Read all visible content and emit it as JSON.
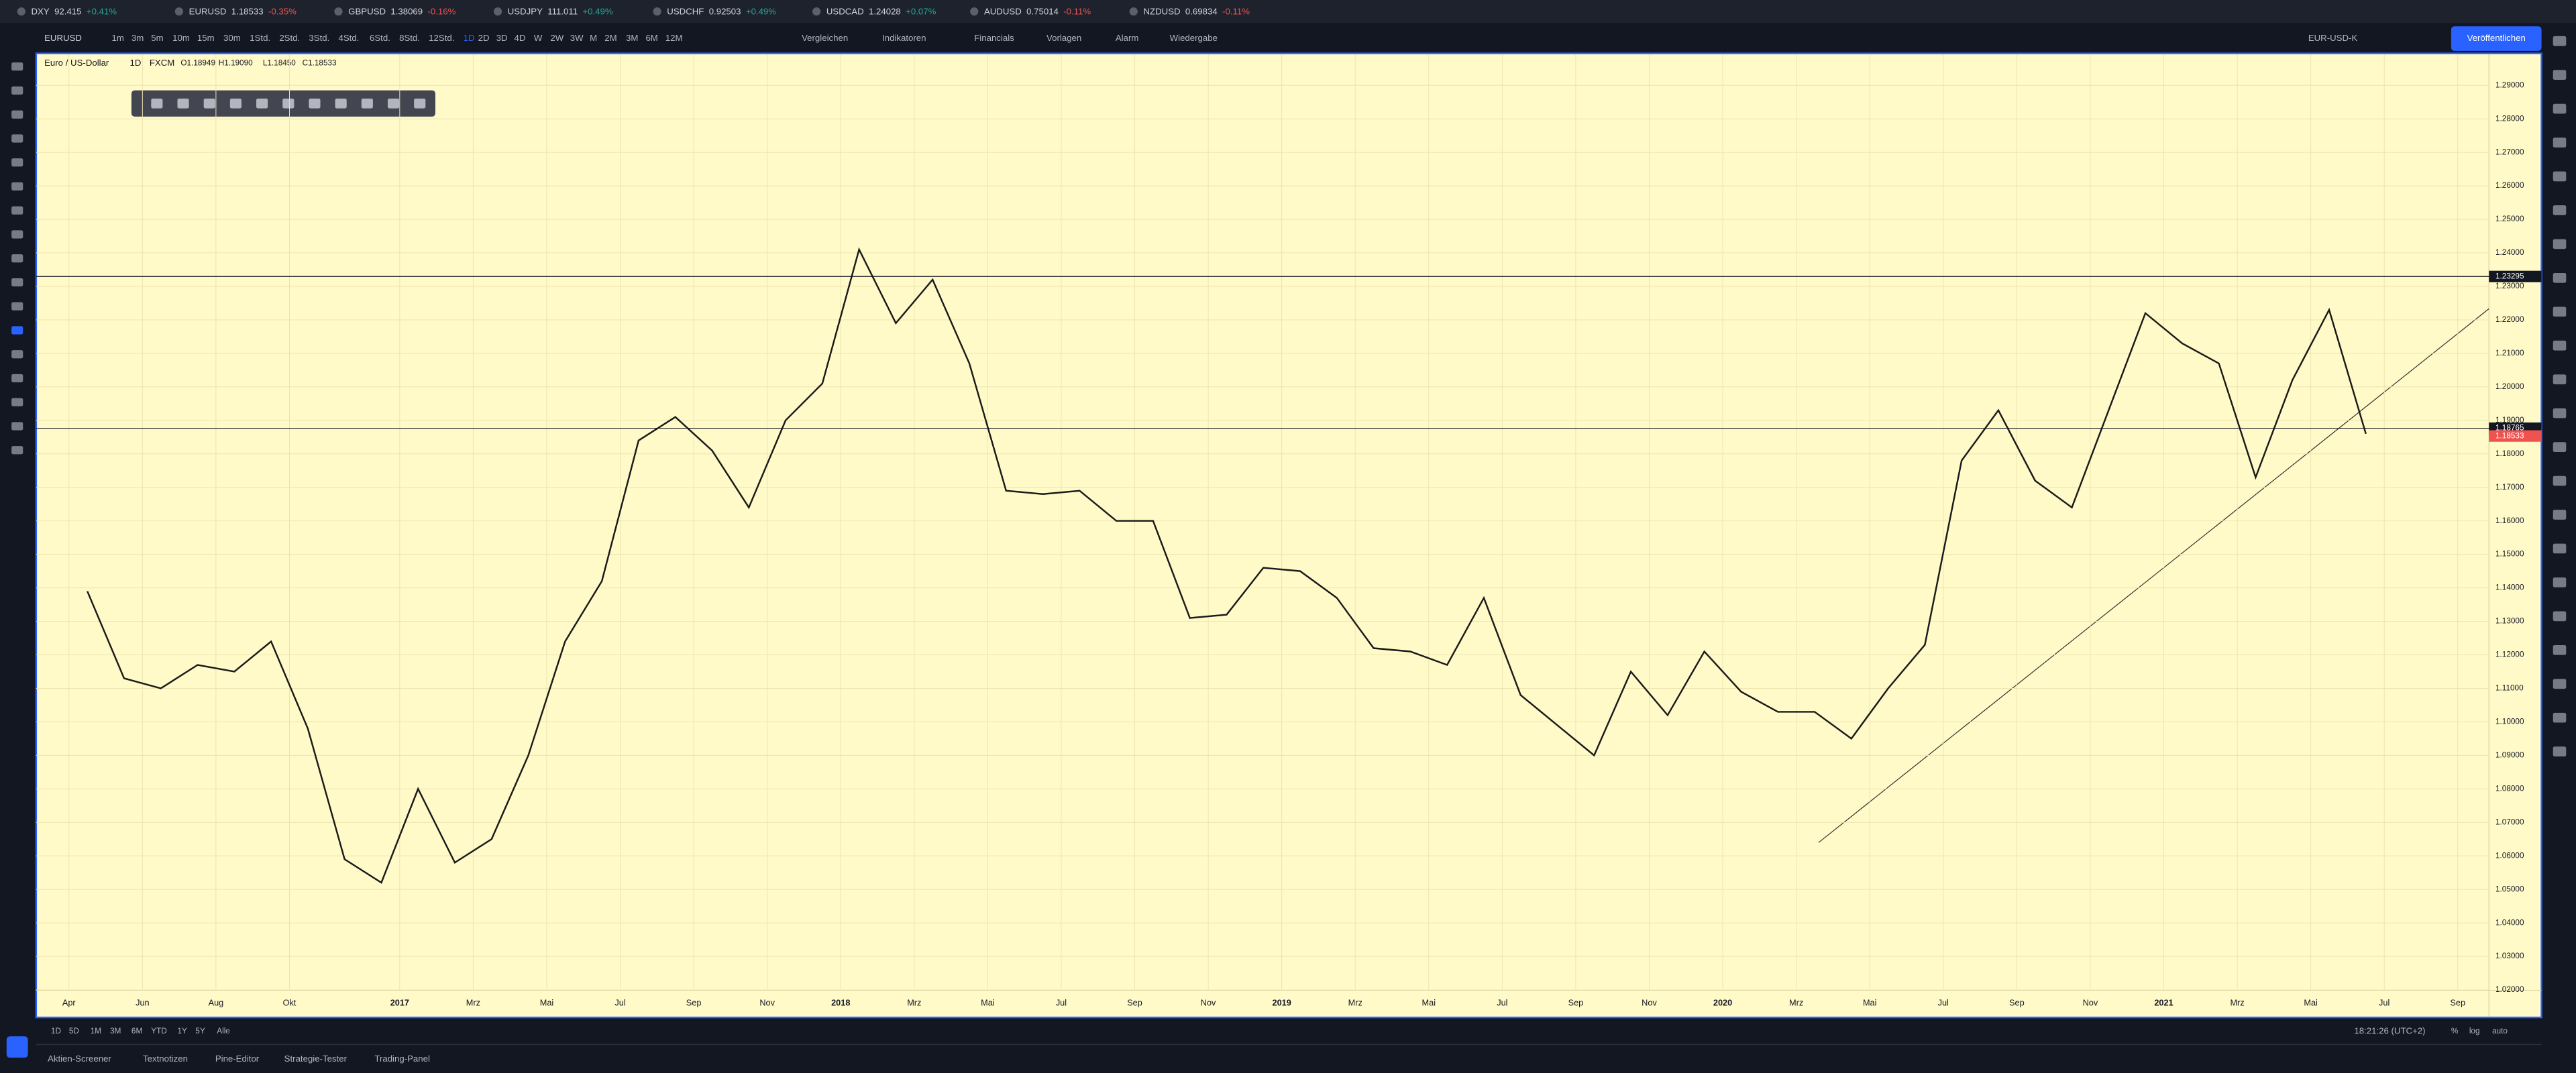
{
  "ticker_tabs": [
    {
      "symbol": "DXY",
      "price": "92.415",
      "change": "+0.41%"
    },
    {
      "symbol": "EURUSD",
      "price": "1.18533",
      "change": "-0.35%"
    },
    {
      "symbol": "GBPUSD",
      "price": "1.38069",
      "change": "-0.16%"
    },
    {
      "symbol": "USDJPY",
      "price": "111.011",
      "change": "+0.49%"
    },
    {
      "symbol": "USDCHF",
      "price": "0.92503",
      "change": "+0.49%"
    },
    {
      "symbol": "USDCAD",
      "price": "1.24028",
      "change": "+0.07%"
    },
    {
      "symbol": "AUDUSD",
      "price": "0.75014",
      "change": "-0.11%"
    },
    {
      "symbol": "NZDUSD",
      "price": "0.69834",
      "change": "-0.11%"
    }
  ],
  "toolbar": {
    "symbol": "EURUSD",
    "intervals": [
      "1m",
      "3m",
      "5m",
      "10m",
      "15m",
      "30m",
      "1Std.",
      "2Std.",
      "3Std.",
      "4Std.",
      "6Std.",
      "8Std.",
      "12Std.",
      "1D",
      "2D",
      "3D",
      "4D",
      "W",
      "2W",
      "3W",
      "M",
      "2M",
      "3M",
      "6M",
      "12M"
    ],
    "buttons": [
      "Vergleichen",
      "Indikatoren",
      "Financials",
      "Vorlagen",
      "Alarm",
      "Wiedergabe"
    ],
    "layout_name": "EUR-USD-K",
    "publish": "Veröffentlichen"
  },
  "legend": {
    "name": "Euro / US-Dollar",
    "interval": "1D",
    "source": "FXCM",
    "ohlc": [
      "O1.18949",
      "H1.19090",
      "L1.18450",
      "C1.18533"
    ]
  },
  "chart_data": {
    "type": "line",
    "color": "#1a1a1a",
    "x": [
      "2016-04",
      "2016-05",
      "2016-06",
      "2016-07",
      "2016-08",
      "2016-09",
      "2016-10",
      "2016-11",
      "2016-12",
      "2017-01",
      "2017-02",
      "2017-03",
      "2017-04",
      "2017-05",
      "2017-06",
      "2017-07",
      "2017-08",
      "2017-09",
      "2017-10",
      "2017-11",
      "2017-12",
      "2018-01",
      "2018-02",
      "2018-03",
      "2018-04",
      "2018-05",
      "2018-06",
      "2018-07",
      "2018-08",
      "2018-09",
      "2018-10",
      "2018-11",
      "2018-12",
      "2019-01",
      "2019-02",
      "2019-03",
      "2019-04",
      "2019-05",
      "2019-06",
      "2019-07",
      "2019-08",
      "2019-09",
      "2019-10",
      "2019-11",
      "2019-12",
      "2020-01",
      "2020-02",
      "2020-03",
      "2020-04",
      "2020-05",
      "2020-06",
      "2020-07",
      "2020-08",
      "2020-09",
      "2020-10",
      "2020-11",
      "2020-12",
      "2021-01",
      "2021-02",
      "2021-03",
      "2021-04",
      "2021-05",
      "2021-06"
    ],
    "values": [
      1.139,
      1.113,
      1.11,
      1.117,
      1.115,
      1.124,
      1.098,
      1.059,
      1.052,
      1.08,
      1.058,
      1.065,
      1.09,
      1.124,
      1.142,
      1.184,
      1.191,
      1.181,
      1.164,
      1.19,
      1.201,
      1.241,
      1.219,
      1.232,
      1.207,
      1.169,
      1.168,
      1.169,
      1.16,
      1.16,
      1.131,
      1.132,
      1.146,
      1.145,
      1.137,
      1.122,
      1.121,
      1.117,
      1.137,
      1.108,
      1.099,
      1.09,
      1.115,
      1.102,
      1.121,
      1.109,
      1.103,
      1.103,
      1.095,
      1.11,
      1.123,
      1.178,
      1.193,
      1.172,
      1.164,
      1.193,
      1.222,
      1.213,
      1.207,
      1.173,
      1.202,
      1.223,
      1.186
    ],
    "xlim": [
      "2016-03",
      "2021-10"
    ],
    "xticks": [
      {
        "value": "2016-04",
        "label": "Apr"
      },
      {
        "value": "2016-06",
        "label": "Jun"
      },
      {
        "value": "2016-08",
        "label": "Aug"
      },
      {
        "value": "2016-10",
        "label": "Okt"
      },
      {
        "value": "2017-01",
        "label": "2017"
      },
      {
        "value": "2017-03",
        "label": "Mrz"
      },
      {
        "value": "2017-05",
        "label": "Mai"
      },
      {
        "value": "2017-07",
        "label": "Jul"
      },
      {
        "value": "2017-09",
        "label": "Sep"
      },
      {
        "value": "2017-11",
        "label": "Nov"
      },
      {
        "value": "2018-01",
        "label": "2018"
      },
      {
        "value": "2018-03",
        "label": "Mrz"
      },
      {
        "value": "2018-05",
        "label": "Mai"
      },
      {
        "value": "2018-07",
        "label": "Jul"
      },
      {
        "value": "2018-09",
        "label": "Sep"
      },
      {
        "value": "2018-11",
        "label": "Nov"
      },
      {
        "value": "2019-01",
        "label": "2019"
      },
      {
        "value": "2019-03",
        "label": "Mrz"
      },
      {
        "value": "2019-05",
        "label": "Mai"
      },
      {
        "value": "2019-07",
        "label": "Jul"
      },
      {
        "value": "2019-09",
        "label": "Sep"
      },
      {
        "value": "2019-11",
        "label": "Nov"
      },
      {
        "value": "2020-01",
        "label": "2020"
      },
      {
        "value": "2020-03",
        "label": "Mrz"
      },
      {
        "value": "2020-05",
        "label": "Mai"
      },
      {
        "value": "2020-07",
        "label": "Jul"
      },
      {
        "value": "2020-09",
        "label": "Sep"
      },
      {
        "value": "2020-11",
        "label": "Nov"
      },
      {
        "value": "2021-01",
        "label": "2021"
      },
      {
        "value": "2021-03",
        "label": "Mrz"
      },
      {
        "value": "2021-05",
        "label": "Mai"
      },
      {
        "value": "2021-07",
        "label": "Jul"
      },
      {
        "value": "2021-09",
        "label": "Sep"
      }
    ],
    "ylim": [
      1.013,
      1.2993
    ],
    "yticks": [
      {
        "value": 1.02,
        "label": "1.02000"
      },
      {
        "value": 1.03,
        "label": "1.03000"
      },
      {
        "value": 1.04,
        "label": "1.04000"
      },
      {
        "value": 1.05,
        "label": "1.05000"
      },
      {
        "value": 1.06,
        "label": "1.06000"
      },
      {
        "value": 1.07,
        "label": "1.07000"
      },
      {
        "value": 1.08,
        "label": "1.08000"
      },
      {
        "value": 1.09,
        "label": "1.09000"
      },
      {
        "value": 1.1,
        "label": "1.10000"
      },
      {
        "value": 1.11,
        "label": "1.11000"
      },
      {
        "value": 1.12,
        "label": "1.12000"
      },
      {
        "value": 1.13,
        "label": "1.13000"
      },
      {
        "value": 1.14,
        "label": "1.14000"
      },
      {
        "value": 1.15,
        "label": "1.15000"
      },
      {
        "value": 1.16,
        "label": "1.16000"
      },
      {
        "value": 1.17,
        "label": "1.17000"
      },
      {
        "value": 1.18,
        "label": "1.18000"
      },
      {
        "value": 1.19,
        "label": "1.19000"
      },
      {
        "value": 1.2,
        "label": "1.20000"
      },
      {
        "value": 1.21,
        "label": "1.21000"
      },
      {
        "value": 1.22,
        "label": "1.22000"
      },
      {
        "value": 1.23,
        "label": "1.23000"
      },
      {
        "value": 1.24,
        "label": "1.24000"
      },
      {
        "value": 1.25,
        "label": "1.25000"
      },
      {
        "value": 1.26,
        "label": "1.26000"
      },
      {
        "value": 1.27,
        "label": "1.27000"
      },
      {
        "value": 1.28,
        "label": "1.28000"
      },
      {
        "value": 1.29,
        "label": "1.29000"
      }
    ],
    "grid": true,
    "horizontal_lines": [
      {
        "value": 1.23295,
        "label": "1.23295"
      },
      {
        "value": 1.18765,
        "label": "1.18765"
      }
    ],
    "last_price": {
      "value": 1.18533,
      "label": "1.18533"
    }
  },
  "range_buttons": [
    "1D",
    "5D",
    "1M",
    "3M",
    "6M",
    "YTD",
    "1Y",
    "5Y",
    "Alle"
  ],
  "clock": "18:21:26 (UTC+2)",
  "scale_buttons": [
    "%",
    "log",
    "auto"
  ],
  "bottom_tabs": [
    "Aktien-Screener",
    "Textnotizen",
    "Pine-Editor",
    "Strategie-Tester",
    "Trading-Panel"
  ]
}
